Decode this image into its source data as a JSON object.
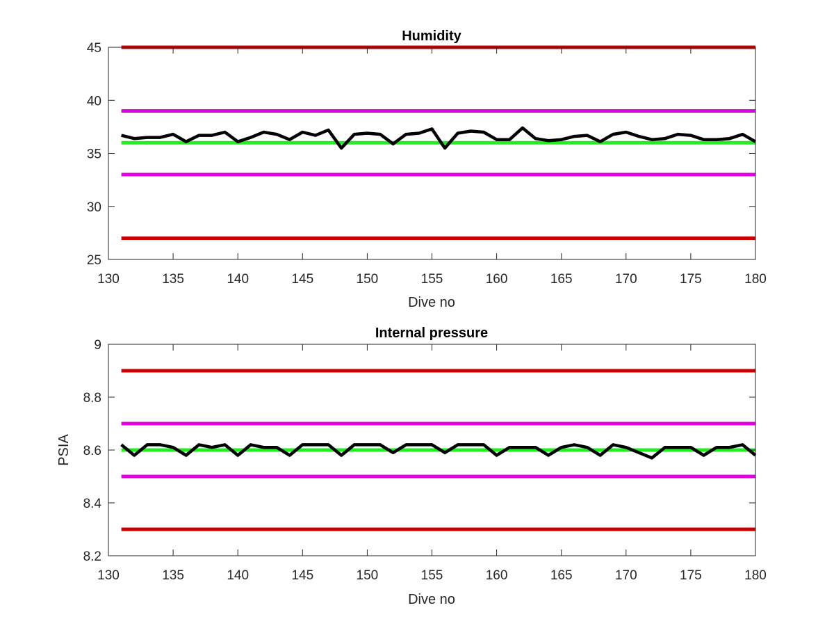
{
  "figure": {
    "background": "#ffffff"
  },
  "chart_data": [
    {
      "type": "line",
      "title": "Humidity",
      "xlabel": "Dive no",
      "ylabel": "",
      "xlim": [
        130,
        180
      ],
      "ylim": [
        25,
        45
      ],
      "xticks": [
        130,
        135,
        140,
        145,
        150,
        155,
        160,
        165,
        170,
        175,
        180
      ],
      "yticks": [
        25,
        30,
        35,
        40,
        45
      ],
      "grid": false,
      "legend": "none",
      "reference_lines": [
        {
          "value": 45,
          "color": "#cc0000"
        },
        {
          "value": 39,
          "color": "#e100e1"
        },
        {
          "value": 36,
          "color": "#22ee22"
        },
        {
          "value": 33,
          "color": "#e100e1"
        },
        {
          "value": 27,
          "color": "#cc0000"
        }
      ],
      "series": [
        {
          "color": "#000000",
          "x": [
            131,
            132,
            133,
            134,
            135,
            136,
            137,
            138,
            139,
            140,
            141,
            142,
            143,
            144,
            145,
            146,
            147,
            148,
            149,
            150,
            151,
            152,
            153,
            154,
            155,
            156,
            157,
            158,
            159,
            160,
            161,
            162,
            163,
            164,
            165,
            166,
            167,
            168,
            169,
            170,
            171,
            172,
            173,
            174,
            175,
            176,
            177,
            178,
            179,
            180
          ],
          "y": [
            36.7,
            36.4,
            36.5,
            36.5,
            36.8,
            36.1,
            36.7,
            36.7,
            37.0,
            36.1,
            36.5,
            37.0,
            36.8,
            36.3,
            37.0,
            36.7,
            37.2,
            35.5,
            36.8,
            36.9,
            36.8,
            35.9,
            36.8,
            36.9,
            37.3,
            35.5,
            36.9,
            37.1,
            37.0,
            36.3,
            36.3,
            37.4,
            36.4,
            36.2,
            36.3,
            36.6,
            36.7,
            36.1,
            36.8,
            37.0,
            36.6,
            36.3,
            36.4,
            36.8,
            36.7,
            36.3,
            36.3,
            36.4,
            36.8,
            36.1
          ]
        }
      ]
    },
    {
      "type": "line",
      "title": "Internal pressure",
      "xlabel": "Dive no",
      "ylabel": "PSIA",
      "xlim": [
        130,
        180
      ],
      "ylim": [
        8.2,
        9
      ],
      "xticks": [
        130,
        135,
        140,
        145,
        150,
        155,
        160,
        165,
        170,
        175,
        180
      ],
      "yticks": [
        8.2,
        8.4,
        8.6,
        8.8,
        9
      ],
      "grid": false,
      "legend": "none",
      "reference_lines": [
        {
          "value": 8.9,
          "color": "#cc0000"
        },
        {
          "value": 8.7,
          "color": "#e100e1"
        },
        {
          "value": 8.6,
          "color": "#22ee22"
        },
        {
          "value": 8.5,
          "color": "#e100e1"
        },
        {
          "value": 8.3,
          "color": "#cc0000"
        }
      ],
      "series": [
        {
          "color": "#000000",
          "x": [
            131,
            132,
            133,
            134,
            135,
            136,
            137,
            138,
            139,
            140,
            141,
            142,
            143,
            144,
            145,
            146,
            147,
            148,
            149,
            150,
            151,
            152,
            153,
            154,
            155,
            156,
            157,
            158,
            159,
            160,
            161,
            162,
            163,
            164,
            165,
            166,
            167,
            168,
            169,
            170,
            171,
            172,
            173,
            174,
            175,
            176,
            177,
            178,
            179,
            180
          ],
          "y": [
            8.62,
            8.58,
            8.62,
            8.62,
            8.61,
            8.58,
            8.62,
            8.61,
            8.62,
            8.58,
            8.62,
            8.61,
            8.61,
            8.58,
            8.62,
            8.62,
            8.62,
            8.58,
            8.62,
            8.62,
            8.62,
            8.59,
            8.62,
            8.62,
            8.62,
            8.59,
            8.62,
            8.62,
            8.62,
            8.58,
            8.61,
            8.61,
            8.61,
            8.58,
            8.61,
            8.62,
            8.61,
            8.58,
            8.62,
            8.61,
            8.59,
            8.57,
            8.61,
            8.61,
            8.61,
            8.58,
            8.61,
            8.61,
            8.62,
            8.58
          ]
        }
      ]
    }
  ]
}
